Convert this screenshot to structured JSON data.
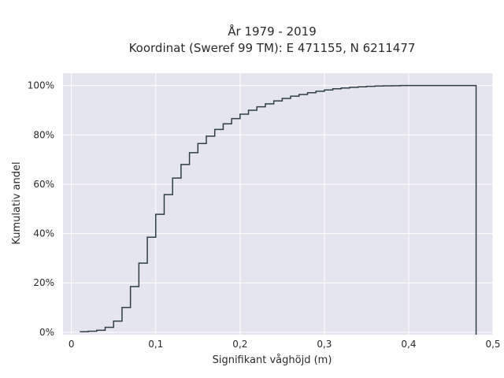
{
  "chart_data": {
    "type": "line",
    "step": "hv",
    "title_lines": [
      "År 1979 - 2019",
      "Koordinat (Sweref 99 TM): E 471155, N 6211477"
    ],
    "xlabel": "Signifikant våghöjd (m)",
    "ylabel": "Kumulativ andel",
    "xlim": [
      -0.01,
      0.5
    ],
    "ylim": [
      -0.01,
      1.05
    ],
    "x_ticks": [
      0,
      0.1,
      0.2,
      0.3,
      0.4,
      0.5
    ],
    "x_tick_labels": [
      "0",
      "0,1",
      "0,2",
      "0,3",
      "0,4",
      "0,5"
    ],
    "y_ticks": [
      0,
      0.2,
      0.4,
      0.6,
      0.8,
      1.0
    ],
    "y_tick_labels": [
      "0%",
      "20%",
      "40%",
      "60%",
      "80%",
      "100%"
    ],
    "grid": true,
    "colors": {
      "background": "#e5e5ef",
      "line": "#2f3e46",
      "grid": "#ffffff"
    },
    "series": [
      {
        "x": [
          0.01,
          0.02,
          0.03,
          0.04,
          0.05,
          0.06,
          0.07,
          0.08,
          0.09,
          0.1,
          0.11,
          0.12,
          0.13,
          0.14,
          0.15,
          0.16,
          0.17,
          0.18,
          0.19,
          0.2,
          0.21,
          0.22,
          0.23,
          0.24,
          0.25,
          0.26,
          0.27,
          0.28,
          0.29,
          0.3,
          0.31,
          0.32,
          0.33,
          0.34,
          0.35,
          0.36,
          0.37,
          0.38,
          0.39,
          0.4,
          0.41,
          0.48,
          0.48
        ],
        "y": [
          0.002,
          0.004,
          0.008,
          0.02,
          0.045,
          0.1,
          0.185,
          0.28,
          0.385,
          0.478,
          0.558,
          0.625,
          0.68,
          0.728,
          0.765,
          0.795,
          0.822,
          0.845,
          0.866,
          0.884,
          0.9,
          0.914,
          0.926,
          0.938,
          0.948,
          0.957,
          0.964,
          0.971,
          0.977,
          0.982,
          0.987,
          0.99,
          0.993,
          0.995,
          0.997,
          0.998,
          0.999,
          0.9995,
          1.0,
          1.0,
          1.0,
          1.0,
          -0.01
        ]
      }
    ]
  }
}
